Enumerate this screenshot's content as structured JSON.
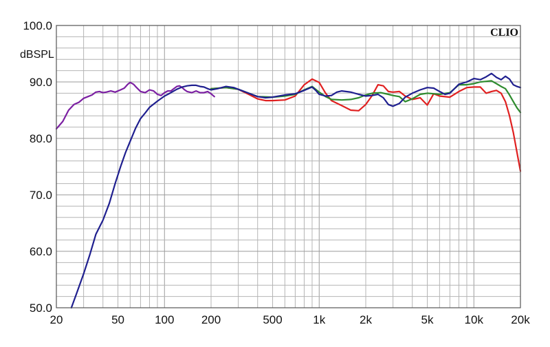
{
  "chart_data": {
    "type": "line",
    "title": "",
    "ylabel": "dBSPL",
    "xlabel": "",
    "watermark": "CLIO",
    "x_scale": "log",
    "xlim": [
      20,
      20000
    ],
    "ylim": [
      50,
      100
    ],
    "grid": true,
    "x_ticks": [
      {
        "value": 20,
        "label": "20"
      },
      {
        "value": 50,
        "label": "50"
      },
      {
        "value": 100,
        "label": "100"
      },
      {
        "value": 200,
        "label": "200"
      },
      {
        "value": 500,
        "label": "500"
      },
      {
        "value": 1000,
        "label": "1k"
      },
      {
        "value": 2000,
        "label": "2k"
      },
      {
        "value": 5000,
        "label": "5k"
      },
      {
        "value": 10000,
        "label": "10k"
      },
      {
        "value": 20000,
        "label": "20k"
      }
    ],
    "y_ticks": [
      {
        "value": 100,
        "label": "100.0"
      },
      {
        "value": 90,
        "label": "90.0"
      },
      {
        "value": 80,
        "label": "80.0"
      },
      {
        "value": 70,
        "label": "70.0"
      },
      {
        "value": 60,
        "label": "60.0"
      },
      {
        "value": 50,
        "label": "50.0"
      }
    ],
    "series": [
      {
        "color": "#7b1fa2",
        "points": [
          [
            20,
            81.7
          ],
          [
            22,
            83
          ],
          [
            24,
            85
          ],
          [
            26,
            86
          ],
          [
            28,
            86.4
          ],
          [
            30,
            87.1
          ],
          [
            32,
            87.4
          ],
          [
            34,
            87.7
          ],
          [
            36,
            88.2
          ],
          [
            38,
            88.3
          ],
          [
            40,
            88.1
          ],
          [
            42,
            88.2
          ],
          [
            45,
            88.4
          ],
          [
            48,
            88.2
          ],
          [
            52,
            88.6
          ],
          [
            55,
            88.9
          ],
          [
            58,
            89.6
          ],
          [
            60,
            89.9
          ],
          [
            63,
            89.6
          ],
          [
            66,
            89.0
          ],
          [
            70,
            88.3
          ],
          [
            75,
            88.1
          ],
          [
            80,
            88.6
          ],
          [
            85,
            88.4
          ],
          [
            90,
            87.8
          ],
          [
            95,
            87.6
          ],
          [
            100,
            88.1
          ],
          [
            105,
            88.4
          ],
          [
            110,
            88.4
          ],
          [
            115,
            88.8
          ],
          [
            120,
            89.2
          ],
          [
            125,
            89.3
          ],
          [
            130,
            89.0
          ],
          [
            135,
            88.6
          ],
          [
            140,
            88.3
          ],
          [
            150,
            88.1
          ],
          [
            160,
            88.4
          ],
          [
            170,
            88.1
          ],
          [
            180,
            88.1
          ],
          [
            190,
            88.3
          ],
          [
            200,
            87.9
          ],
          [
            210,
            87.4
          ]
        ]
      },
      {
        "color": "#e02020",
        "points": [
          [
            200,
            88.8
          ],
          [
            250,
            89.0
          ],
          [
            300,
            88.7
          ],
          [
            350,
            87.8
          ],
          [
            400,
            87.0
          ],
          [
            450,
            86.7
          ],
          [
            500,
            86.7
          ],
          [
            600,
            86.8
          ],
          [
            700,
            87.5
          ],
          [
            800,
            89.5
          ],
          [
            900,
            90.5
          ],
          [
            1000,
            89.9
          ],
          [
            1100,
            88.0
          ],
          [
            1200,
            86.7
          ],
          [
            1400,
            85.8
          ],
          [
            1600,
            85.0
          ],
          [
            1800,
            84.9
          ],
          [
            2000,
            86.0
          ],
          [
            2200,
            87.6
          ],
          [
            2400,
            89.5
          ],
          [
            2600,
            89.3
          ],
          [
            2800,
            88.3
          ],
          [
            3000,
            88.2
          ],
          [
            3300,
            88.3
          ],
          [
            3600,
            87.5
          ],
          [
            4000,
            86.9
          ],
          [
            4500,
            87.2
          ],
          [
            5000,
            85.9
          ],
          [
            5500,
            87.9
          ],
          [
            6000,
            87.5
          ],
          [
            7000,
            87.3
          ],
          [
            8000,
            88.3
          ],
          [
            9000,
            89.0
          ],
          [
            10000,
            89.1
          ],
          [
            11000,
            89.1
          ],
          [
            12000,
            88.0
          ],
          [
            13000,
            88.3
          ],
          [
            14000,
            88.5
          ],
          [
            15000,
            88.0
          ],
          [
            16000,
            86.5
          ],
          [
            17000,
            84.0
          ],
          [
            18000,
            81.0
          ],
          [
            19000,
            77.5
          ],
          [
            20000,
            74.2
          ]
        ]
      },
      {
        "color": "#2e8b2e",
        "points": [
          [
            200,
            88.8
          ],
          [
            250,
            89.0
          ],
          [
            300,
            88.7
          ],
          [
            350,
            88.0
          ],
          [
            400,
            87.4
          ],
          [
            500,
            87.3
          ],
          [
            600,
            87.5
          ],
          [
            700,
            87.8
          ],
          [
            800,
            88.6
          ],
          [
            900,
            89.2
          ],
          [
            1000,
            88.2
          ],
          [
            1100,
            87.4
          ],
          [
            1200,
            86.9
          ],
          [
            1400,
            86.8
          ],
          [
            1600,
            86.9
          ],
          [
            1800,
            87.2
          ],
          [
            2000,
            87.7
          ],
          [
            2200,
            88.0
          ],
          [
            2500,
            88.1
          ],
          [
            2800,
            87.8
          ],
          [
            3000,
            87.6
          ],
          [
            3300,
            87.4
          ],
          [
            3600,
            86.5
          ],
          [
            4000,
            87.0
          ],
          [
            4500,
            87.8
          ],
          [
            5000,
            88.0
          ],
          [
            5500,
            87.9
          ],
          [
            6000,
            87.8
          ],
          [
            7000,
            88.1
          ],
          [
            8000,
            89.5
          ],
          [
            9000,
            89.5
          ],
          [
            10000,
            89.7
          ],
          [
            11000,
            90.0
          ],
          [
            12000,
            90.1
          ],
          [
            13000,
            90.2
          ],
          [
            14000,
            89.7
          ],
          [
            15000,
            89.2
          ],
          [
            16000,
            88.8
          ],
          [
            17000,
            87.7
          ],
          [
            18000,
            86.5
          ],
          [
            19000,
            85.4
          ],
          [
            20000,
            84.6
          ]
        ]
      },
      {
        "color": "#1f1f8f",
        "points": [
          [
            25,
            50.0
          ],
          [
            27,
            52.5
          ],
          [
            30,
            56.0
          ],
          [
            33,
            59.5
          ],
          [
            36,
            63.0
          ],
          [
            40,
            65.5
          ],
          [
            44,
            68.5
          ],
          [
            48,
            72.0
          ],
          [
            52,
            75.0
          ],
          [
            56,
            77.5
          ],
          [
            60,
            79.5
          ],
          [
            65,
            81.8
          ],
          [
            70,
            83.5
          ],
          [
            75,
            84.5
          ],
          [
            80,
            85.5
          ],
          [
            90,
            86.6
          ],
          [
            100,
            87.5
          ],
          [
            110,
            88.1
          ],
          [
            120,
            88.7
          ],
          [
            130,
            89.1
          ],
          [
            140,
            89.3
          ],
          [
            150,
            89.4
          ],
          [
            160,
            89.4
          ],
          [
            170,
            89.2
          ],
          [
            180,
            89.1
          ],
          [
            190,
            88.8
          ],
          [
            200,
            88.6
          ],
          [
            220,
            88.8
          ],
          [
            250,
            89.2
          ],
          [
            280,
            89.0
          ],
          [
            300,
            88.7
          ],
          [
            350,
            88.0
          ],
          [
            400,
            87.4
          ],
          [
            450,
            87.2
          ],
          [
            500,
            87.3
          ],
          [
            600,
            87.7
          ],
          [
            700,
            87.9
          ],
          [
            800,
            88.5
          ],
          [
            900,
            89.1
          ],
          [
            950,
            88.5
          ],
          [
            1000,
            87.8
          ],
          [
            1100,
            87.5
          ],
          [
            1200,
            87.6
          ],
          [
            1300,
            88.2
          ],
          [
            1400,
            88.4
          ],
          [
            1600,
            88.2
          ],
          [
            1800,
            87.8
          ],
          [
            2000,
            87.5
          ],
          [
            2200,
            87.6
          ],
          [
            2400,
            87.8
          ],
          [
            2600,
            87.2
          ],
          [
            2800,
            86.0
          ],
          [
            3000,
            85.7
          ],
          [
            3300,
            86.2
          ],
          [
            3600,
            87.3
          ],
          [
            4000,
            88.0
          ],
          [
            4500,
            88.6
          ],
          [
            5000,
            89.0
          ],
          [
            5500,
            88.9
          ],
          [
            6000,
            88.3
          ],
          [
            6500,
            87.8
          ],
          [
            7000,
            88.0
          ],
          [
            8000,
            89.6
          ],
          [
            9000,
            90.0
          ],
          [
            10000,
            90.6
          ],
          [
            11000,
            90.4
          ],
          [
            12000,
            90.9
          ],
          [
            13000,
            91.5
          ],
          [
            14000,
            90.8
          ],
          [
            15000,
            90.4
          ],
          [
            16000,
            91.0
          ],
          [
            17000,
            90.5
          ],
          [
            18000,
            89.5
          ],
          [
            19000,
            89.2
          ],
          [
            20000,
            89.0
          ]
        ]
      }
    ]
  }
}
